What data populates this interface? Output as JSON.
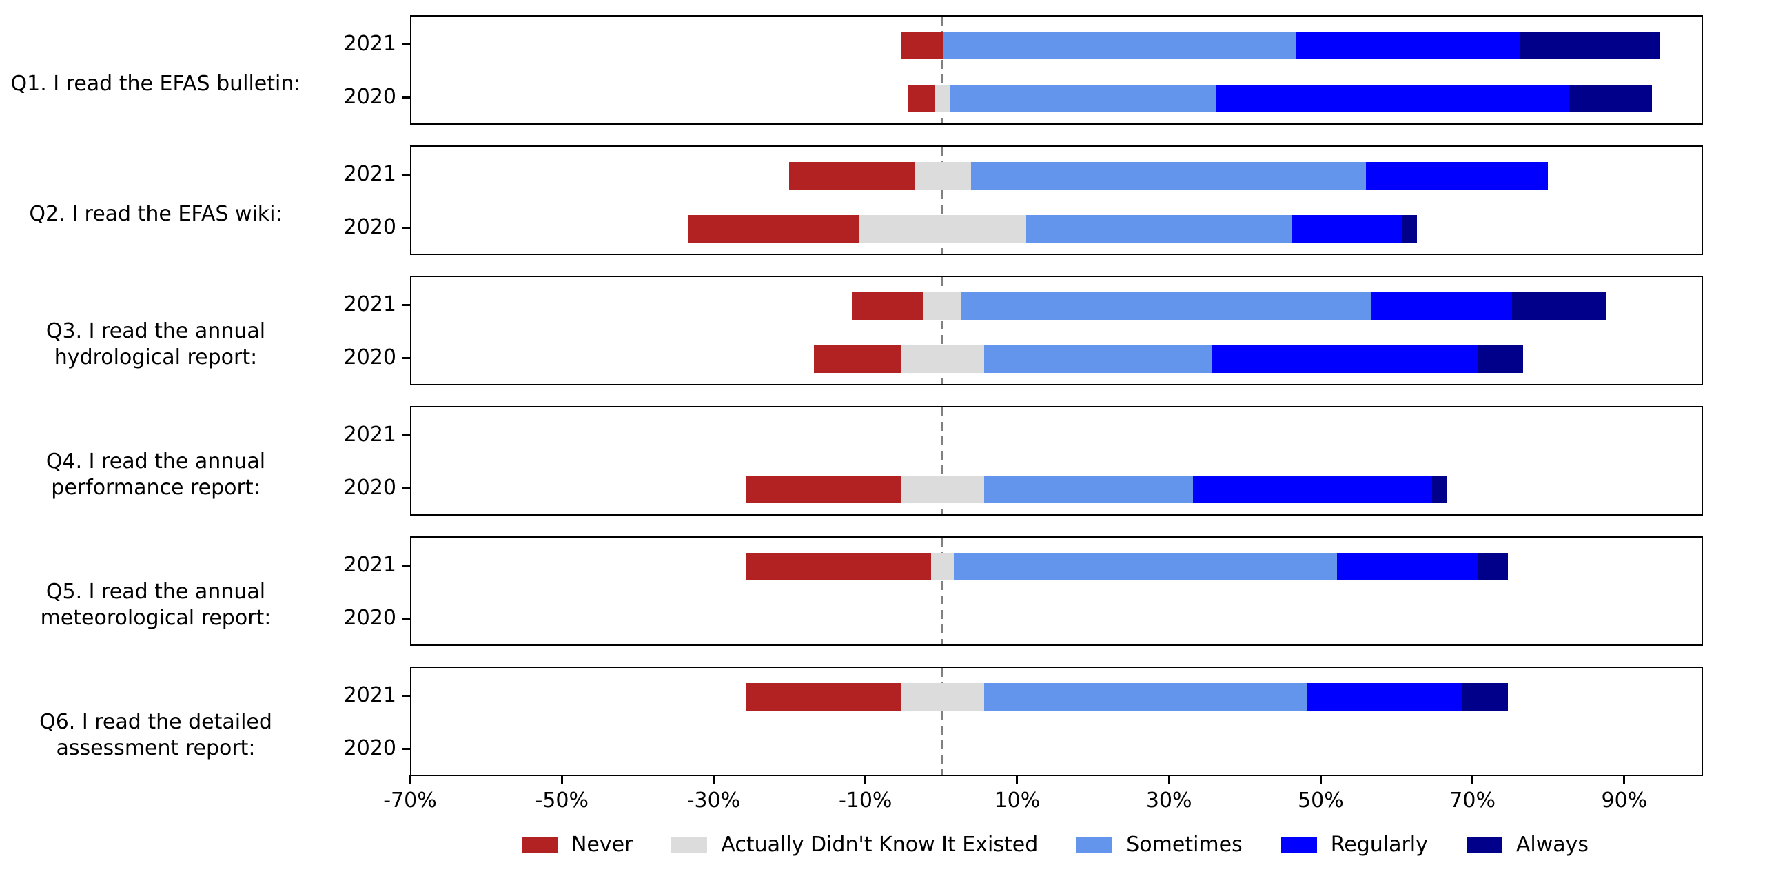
{
  "chart_data": {
    "type": "bar",
    "variant": "diverging-stacked-horizontal",
    "title": "",
    "unit": "%",
    "xlim": [
      -70,
      100
    ],
    "x_ticks": [
      {
        "value": -70,
        "label": "-70%"
      },
      {
        "value": -50,
        "label": "-50%"
      },
      {
        "value": -30,
        "label": "-30%"
      },
      {
        "value": -10,
        "label": "-10%"
      },
      {
        "value": 10,
        "label": "10%"
      },
      {
        "value": 30,
        "label": "30%"
      },
      {
        "value": 50,
        "label": "50%"
      },
      {
        "value": 70,
        "label": "70%"
      },
      {
        "value": 90,
        "label": "90%"
      }
    ],
    "zero_line_value": 0,
    "grid": false,
    "legend_position": "bottom-center",
    "categories": [
      "Never",
      "Actually Didn't Know It Existed",
      "Sometimes",
      "Regularly",
      "Always"
    ],
    "category_keys": [
      "never",
      "didnt_know",
      "sometimes",
      "regularly",
      "always"
    ],
    "colors": {
      "never": "#b22222",
      "didnt_know": "#dcdcdc",
      "sometimes": "#6495ed",
      "regularly": "#0000ff",
      "always": "#00008b",
      "zero_line": "#808080",
      "frame": "#000000"
    },
    "stack_rule": "bar left edge = -(never + didnt_know/2); neutral category centered on zero",
    "panels": [
      {
        "id": "Q1",
        "label_lines": [
          "Q1. I read the EFAS bulletin:"
        ],
        "rows": [
          {
            "year": "2021",
            "never": 5.5,
            "didnt_know": 0,
            "sometimes": 46.5,
            "regularly": 29.5,
            "always": 18.5
          },
          {
            "year": "2020",
            "never": 3.5,
            "didnt_know": 2,
            "sometimes": 35,
            "regularly": 46.5,
            "always": 11
          }
        ]
      },
      {
        "id": "Q2",
        "label_lines": [
          "Q2. I read the EFAS wiki:"
        ],
        "rows": [
          {
            "year": "2021",
            "never": 16.5,
            "didnt_know": 7.5,
            "sometimes": 52,
            "regularly": 24,
            "always": 0
          },
          {
            "year": "2020",
            "never": 22.5,
            "didnt_know": 22,
            "sometimes": 35,
            "regularly": 14.5,
            "always": 2
          }
        ]
      },
      {
        "id": "Q3",
        "label_lines": [
          "Q3. I read the annual",
          "hydrological report:"
        ],
        "rows": [
          {
            "year": "2021",
            "never": 9.5,
            "didnt_know": 5,
            "sometimes": 54,
            "regularly": 18.5,
            "always": 12.5
          },
          {
            "year": "2020",
            "never": 11.5,
            "didnt_know": 11,
            "sometimes": 30,
            "regularly": 35,
            "always": 6
          }
        ]
      },
      {
        "id": "Q4",
        "label_lines": [
          "Q4. I read the annual",
          "performance report:"
        ],
        "rows": [
          {
            "year": "2021",
            "never": 0,
            "didnt_know": 0,
            "sometimes": 0,
            "regularly": 0,
            "always": 0
          },
          {
            "year": "2020",
            "never": 20.5,
            "didnt_know": 11,
            "sometimes": 27.5,
            "regularly": 31.5,
            "always": 2
          }
        ]
      },
      {
        "id": "Q5",
        "label_lines": [
          "Q5. I read the annual",
          "meteorological report:"
        ],
        "rows": [
          {
            "year": "2021",
            "never": 24.5,
            "didnt_know": 3,
            "sometimes": 50.5,
            "regularly": 18.5,
            "always": 4
          },
          {
            "year": "2020",
            "never": 0,
            "didnt_know": 0,
            "sometimes": 0,
            "regularly": 0,
            "always": 0
          }
        ]
      },
      {
        "id": "Q6",
        "label_lines": [
          "Q6. I read the detailed",
          "assessment report:"
        ],
        "rows": [
          {
            "year": "2021",
            "never": 20.5,
            "didnt_know": 11,
            "sometimes": 42.5,
            "regularly": 20.5,
            "always": 6
          },
          {
            "year": "2020",
            "never": 0,
            "didnt_know": 0,
            "sometimes": 0,
            "regularly": 0,
            "always": 0
          }
        ]
      }
    ]
  }
}
